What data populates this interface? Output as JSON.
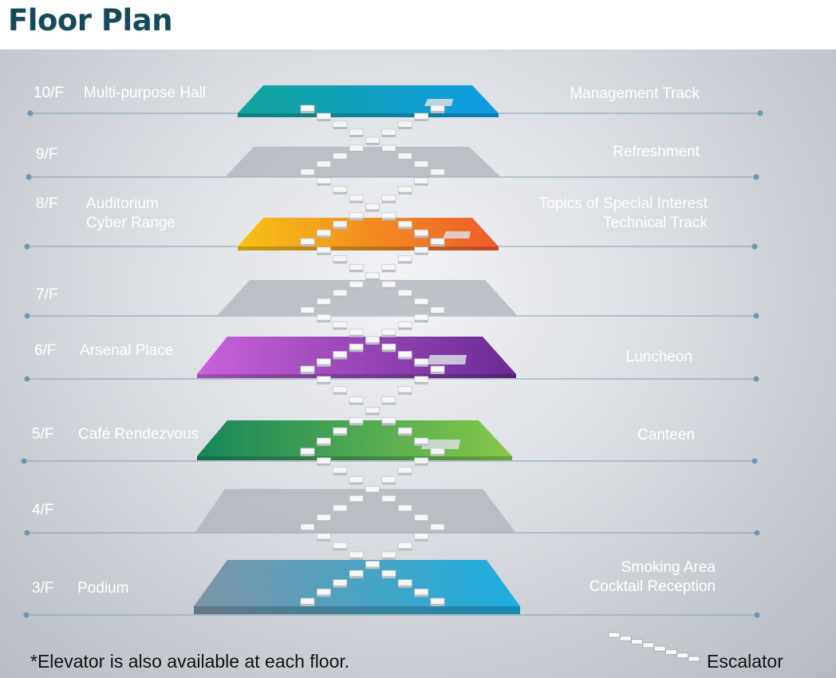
{
  "title": "Floor Plan",
  "floors": [
    {
      "level": "10/F",
      "left": [
        "Multi-purpose Hall"
      ],
      "right": [
        "Management Track"
      ],
      "color_a": "#12a39a",
      "color_b": "#0e9de6"
    },
    {
      "level": "9/F",
      "left": [],
      "right": [
        "Refreshment"
      ],
      "color_a": "#aeb3ba",
      "color_b": "#aeb3ba"
    },
    {
      "level": "8/F",
      "left": [
        "Auditorium",
        "Cyber Range"
      ],
      "right": [
        "Topics of Special Interest",
        "Technical Track"
      ],
      "color_a": "#f6c215",
      "color_b": "#ef5a2a"
    },
    {
      "level": "7/F",
      "left": [],
      "right": [],
      "color_a": "#aeb3ba",
      "color_b": "#aeb3ba"
    },
    {
      "level": "6/F",
      "left": [
        "Arsenal Place"
      ],
      "right": [
        "Luncheon"
      ],
      "color_a": "#c862d8",
      "color_b": "#6a2a94"
    },
    {
      "level": "5/F",
      "left": [
        "Café Rendezvous"
      ],
      "right": [
        "Canteen"
      ],
      "color_a": "#16855a",
      "color_b": "#86c94a"
    },
    {
      "level": "4/F",
      "left": [],
      "right": [],
      "color_a": "#aeb3ba",
      "color_b": "#aeb3ba"
    },
    {
      "level": "3/F",
      "left": [
        "Podium"
      ],
      "right": [
        "Smoking Area",
        "Cocktail Reception"
      ],
      "color_a": "#7d95a5",
      "color_b": "#1aaee0"
    }
  ],
  "footnote": "*Elevator is also available at each floor.",
  "legend": {
    "label": "Escalator"
  }
}
